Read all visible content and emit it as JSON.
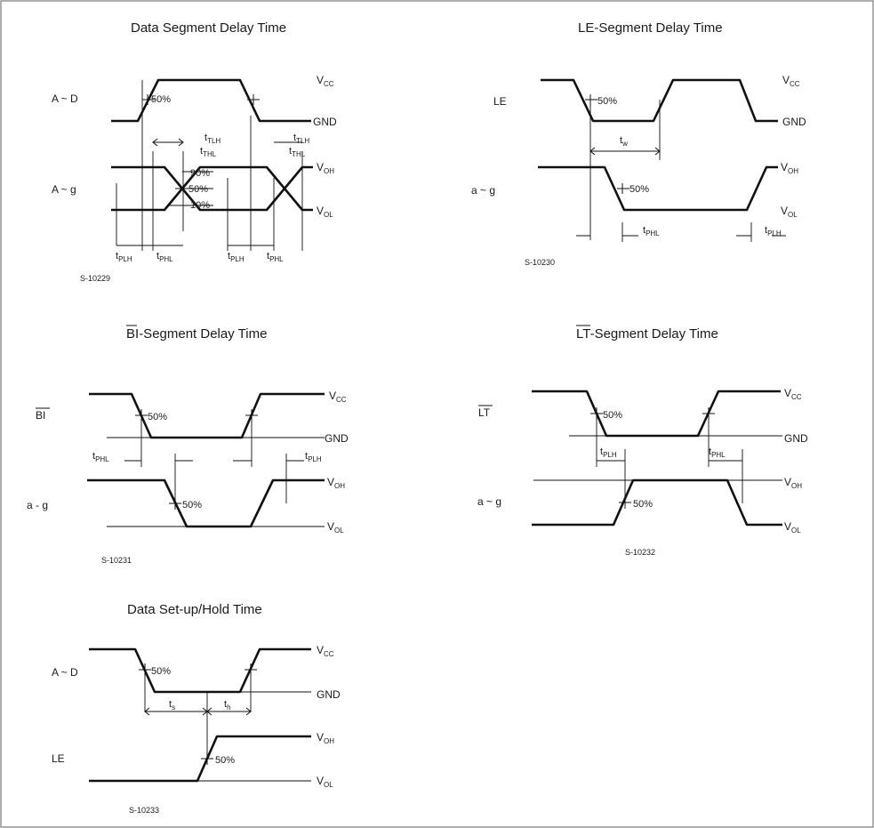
{
  "colors": {
    "ink": "#111111",
    "paper": "#ffffff",
    "border": "#7a7a7a"
  },
  "panels": {
    "data_segment": {
      "title": "Data Segment Delay Time",
      "input_label": "A ~ D",
      "output_label": "A ~ g",
      "figure_code": "S-10229",
      "pct_50": "50%",
      "pct_90": "90%",
      "pct_10": "10%"
    },
    "le_segment": {
      "title": "LE-Segment Delay Time",
      "input_label": "LE",
      "output_label": "a ~ g",
      "figure_code": "S-10230",
      "pct_50": "50%"
    },
    "bi_segment": {
      "title_overbar": "BI",
      "title_rest": "-Segment Delay Time",
      "input_label": "BI",
      "output_label": "a - g",
      "figure_code": "S-10231",
      "pct_50": "50%"
    },
    "lt_segment": {
      "title_overbar": "LT",
      "title_rest": "-Segment Delay Time",
      "input_label": "LT",
      "output_label": "a ~ g",
      "figure_code": "S-10232",
      "pct_50": "50%"
    },
    "setup_hold": {
      "title": "Data Set-up/Hold Time",
      "input_label": "A ~ D",
      "output_label": "LE",
      "figure_code": "S-10233",
      "pct_50": "50%"
    }
  },
  "rails": {
    "vcc": "V",
    "vcc_sub": "CC",
    "gnd": "GND",
    "voh": "V",
    "voh_sub": "OH",
    "vol": "V",
    "vol_sub": "OL"
  },
  "timing": {
    "t": "t",
    "plh": "PLH",
    "phl": "PHL",
    "tlh": "TLH",
    "thl": "THL",
    "w": "w",
    "s": "s",
    "h": "h"
  }
}
